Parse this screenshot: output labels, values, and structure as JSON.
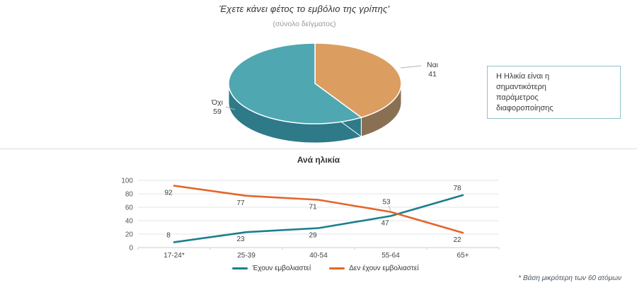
{
  "header": {
    "title": "Έχετε κάνει φέτος το εμβόλιο της γρίπης′",
    "subtitle": "(σύνολο δείγματος)"
  },
  "callout": {
    "lines": [
      "Η Ηλικία είναι η",
      "σημαντικότερη",
      "παράμετρος",
      "διαφοροποίησης"
    ],
    "border_color": "#8fc2ca"
  },
  "footnote": "* Βάση μικρότερη των 60 ατόμων",
  "colors": {
    "teal_line": "#1b7f8e",
    "orange_line": "#e4662b",
    "grid": "#e1e5ea",
    "zero_line": "#c9ced4",
    "axis_text": "#555555",
    "data_label": "#3f3f3f",
    "leader": "#b3b3b3",
    "separator": "#dcdcdc"
  },
  "chart_data": [
    {
      "type": "pie",
      "style": "3d",
      "title": "Έχετε κάνει φέτος το εμβόλιο της γρίπης",
      "subtitle": "(σύνολο δείγματος)",
      "start_angle_deg": 0,
      "direction": "clockwise",
      "slices": [
        {
          "label": "Ναι",
          "value": 41,
          "color": "#dc9d61",
          "side_color": "#8a7052"
        },
        {
          "label": "Όχι",
          "value": 59,
          "color": "#4fa7b1",
          "side_color": "#2e7a89"
        }
      ]
    },
    {
      "type": "line",
      "title": "Ανά ηλικία",
      "categories": [
        "17-24*",
        "25-39",
        "40-54",
        "55-64",
        "65+"
      ],
      "series": [
        {
          "name": "Έχουν εμβολιαστεί",
          "color": "#1b7f8e",
          "values": [
            8,
            23,
            29,
            47,
            78
          ],
          "label_pos": [
            "above",
            "below",
            "below",
            "below",
            "above"
          ]
        },
        {
          "name": "Δεν έχουν εμβολιαστεί",
          "color": "#e4662b",
          "values": [
            92,
            77,
            71,
            53,
            22
          ],
          "label_pos": [
            "below",
            "below",
            "below",
            "above-leader",
            "below"
          ]
        }
      ],
      "ylim": [
        0,
        100
      ],
      "yticks": [
        0,
        20,
        40,
        60,
        80,
        100
      ],
      "grid": true,
      "legend_position": "bottom"
    }
  ]
}
